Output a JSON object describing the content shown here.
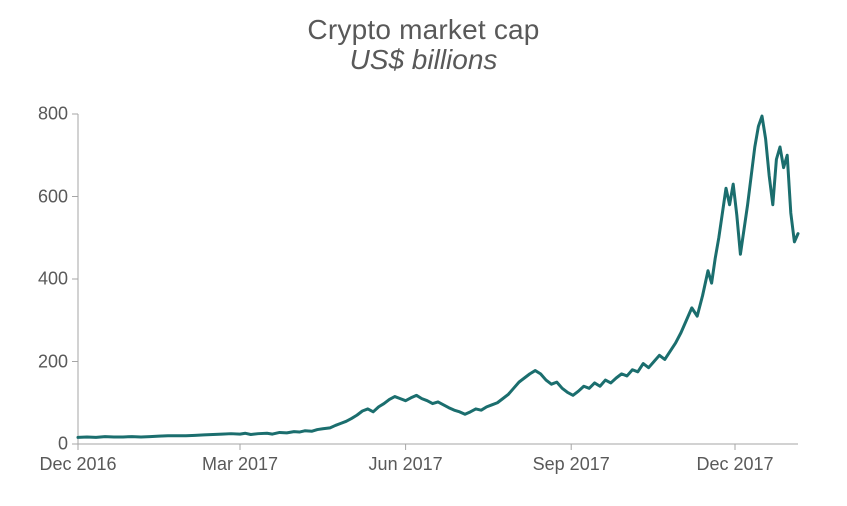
{
  "chart": {
    "type": "line",
    "title": "Crypto market cap",
    "subtitle": "US$ billions",
    "title_color": "#595959",
    "title_fontsize": 28,
    "subtitle_fontsize": 28,
    "subtitle_italic": true,
    "background_color": "#ffffff",
    "line_color": "#1b6e6e",
    "line_width": 3,
    "axis_color": "#a6a6a6",
    "axis_width": 1,
    "tick_mark_length": 6,
    "tick_label_color": "#595959",
    "tick_label_fontsize": 18,
    "ylim": [
      0,
      800
    ],
    "ytick_step": 200,
    "yticks": [
      0,
      200,
      400,
      600,
      800
    ],
    "xlim": [
      0,
      400
    ],
    "xticks": [
      {
        "x": 0,
        "label": "Dec 2016"
      },
      {
        "x": 90,
        "label": "Mar 2017"
      },
      {
        "x": 182,
        "label": "Jun 2017"
      },
      {
        "x": 274,
        "label": "Sep 2017"
      },
      {
        "x": 365,
        "label": "Dec 2017"
      }
    ],
    "data": [
      {
        "x": 0,
        "y": 16
      },
      {
        "x": 5,
        "y": 17
      },
      {
        "x": 10,
        "y": 16
      },
      {
        "x": 15,
        "y": 18
      },
      {
        "x": 20,
        "y": 17
      },
      {
        "x": 25,
        "y": 17
      },
      {
        "x": 30,
        "y": 18
      },
      {
        "x": 35,
        "y": 17
      },
      {
        "x": 40,
        "y": 18
      },
      {
        "x": 45,
        "y": 19
      },
      {
        "x": 50,
        "y": 20
      },
      {
        "x": 55,
        "y": 20
      },
      {
        "x": 60,
        "y": 20
      },
      {
        "x": 65,
        "y": 21
      },
      {
        "x": 70,
        "y": 22
      },
      {
        "x": 75,
        "y": 23
      },
      {
        "x": 80,
        "y": 24
      },
      {
        "x": 85,
        "y": 25
      },
      {
        "x": 90,
        "y": 24
      },
      {
        "x": 93,
        "y": 26
      },
      {
        "x": 96,
        "y": 23
      },
      {
        "x": 100,
        "y": 25
      },
      {
        "x": 105,
        "y": 26
      },
      {
        "x": 108,
        "y": 24
      },
      {
        "x": 112,
        "y": 28
      },
      {
        "x": 116,
        "y": 27
      },
      {
        "x": 120,
        "y": 30
      },
      {
        "x": 123,
        "y": 29
      },
      {
        "x": 126,
        "y": 32
      },
      {
        "x": 130,
        "y": 31
      },
      {
        "x": 133,
        "y": 35
      },
      {
        "x": 136,
        "y": 37
      },
      {
        "x": 140,
        "y": 39
      },
      {
        "x": 143,
        "y": 45
      },
      {
        "x": 146,
        "y": 50
      },
      {
        "x": 149,
        "y": 55
      },
      {
        "x": 152,
        "y": 62
      },
      {
        "x": 155,
        "y": 70
      },
      {
        "x": 158,
        "y": 80
      },
      {
        "x": 161,
        "y": 85
      },
      {
        "x": 164,
        "y": 78
      },
      {
        "x": 167,
        "y": 90
      },
      {
        "x": 170,
        "y": 98
      },
      {
        "x": 173,
        "y": 108
      },
      {
        "x": 176,
        "y": 115
      },
      {
        "x": 179,
        "y": 110
      },
      {
        "x": 182,
        "y": 105
      },
      {
        "x": 185,
        "y": 112
      },
      {
        "x": 188,
        "y": 118
      },
      {
        "x": 191,
        "y": 110
      },
      {
        "x": 194,
        "y": 105
      },
      {
        "x": 197,
        "y": 98
      },
      {
        "x": 200,
        "y": 102
      },
      {
        "x": 203,
        "y": 95
      },
      {
        "x": 206,
        "y": 88
      },
      {
        "x": 209,
        "y": 82
      },
      {
        "x": 212,
        "y": 78
      },
      {
        "x": 215,
        "y": 72
      },
      {
        "x": 218,
        "y": 78
      },
      {
        "x": 221,
        "y": 85
      },
      {
        "x": 224,
        "y": 82
      },
      {
        "x": 227,
        "y": 90
      },
      {
        "x": 230,
        "y": 95
      },
      {
        "x": 233,
        "y": 100
      },
      {
        "x": 236,
        "y": 110
      },
      {
        "x": 239,
        "y": 120
      },
      {
        "x": 242,
        "y": 135
      },
      {
        "x": 245,
        "y": 150
      },
      {
        "x": 248,
        "y": 160
      },
      {
        "x": 251,
        "y": 170
      },
      {
        "x": 254,
        "y": 178
      },
      {
        "x": 257,
        "y": 170
      },
      {
        "x": 260,
        "y": 155
      },
      {
        "x": 263,
        "y": 145
      },
      {
        "x": 266,
        "y": 150
      },
      {
        "x": 269,
        "y": 135
      },
      {
        "x": 272,
        "y": 125
      },
      {
        "x": 275,
        "y": 118
      },
      {
        "x": 278,
        "y": 128
      },
      {
        "x": 281,
        "y": 140
      },
      {
        "x": 284,
        "y": 135
      },
      {
        "x": 287,
        "y": 148
      },
      {
        "x": 290,
        "y": 140
      },
      {
        "x": 293,
        "y": 155
      },
      {
        "x": 296,
        "y": 148
      },
      {
        "x": 299,
        "y": 160
      },
      {
        "x": 302,
        "y": 170
      },
      {
        "x": 305,
        "y": 165
      },
      {
        "x": 308,
        "y": 180
      },
      {
        "x": 311,
        "y": 175
      },
      {
        "x": 314,
        "y": 195
      },
      {
        "x": 317,
        "y": 185
      },
      {
        "x": 320,
        "y": 200
      },
      {
        "x": 323,
        "y": 215
      },
      {
        "x": 326,
        "y": 205
      },
      {
        "x": 329,
        "y": 225
      },
      {
        "x": 332,
        "y": 245
      },
      {
        "x": 335,
        "y": 270
      },
      {
        "x": 338,
        "y": 300
      },
      {
        "x": 341,
        "y": 330
      },
      {
        "x": 344,
        "y": 310
      },
      {
        "x": 347,
        "y": 360
      },
      {
        "x": 350,
        "y": 420
      },
      {
        "x": 352,
        "y": 390
      },
      {
        "x": 354,
        "y": 450
      },
      {
        "x": 356,
        "y": 500
      },
      {
        "x": 358,
        "y": 560
      },
      {
        "x": 360,
        "y": 620
      },
      {
        "x": 362,
        "y": 580
      },
      {
        "x": 364,
        "y": 630
      },
      {
        "x": 366,
        "y": 555
      },
      {
        "x": 368,
        "y": 460
      },
      {
        "x": 370,
        "y": 520
      },
      {
        "x": 372,
        "y": 580
      },
      {
        "x": 374,
        "y": 650
      },
      {
        "x": 376,
        "y": 720
      },
      {
        "x": 378,
        "y": 770
      },
      {
        "x": 380,
        "y": 795
      },
      {
        "x": 382,
        "y": 740
      },
      {
        "x": 384,
        "y": 650
      },
      {
        "x": 386,
        "y": 580
      },
      {
        "x": 388,
        "y": 690
      },
      {
        "x": 390,
        "y": 720
      },
      {
        "x": 392,
        "y": 670
      },
      {
        "x": 394,
        "y": 700
      },
      {
        "x": 396,
        "y": 560
      },
      {
        "x": 398,
        "y": 490
      },
      {
        "x": 400,
        "y": 510
      }
    ]
  }
}
